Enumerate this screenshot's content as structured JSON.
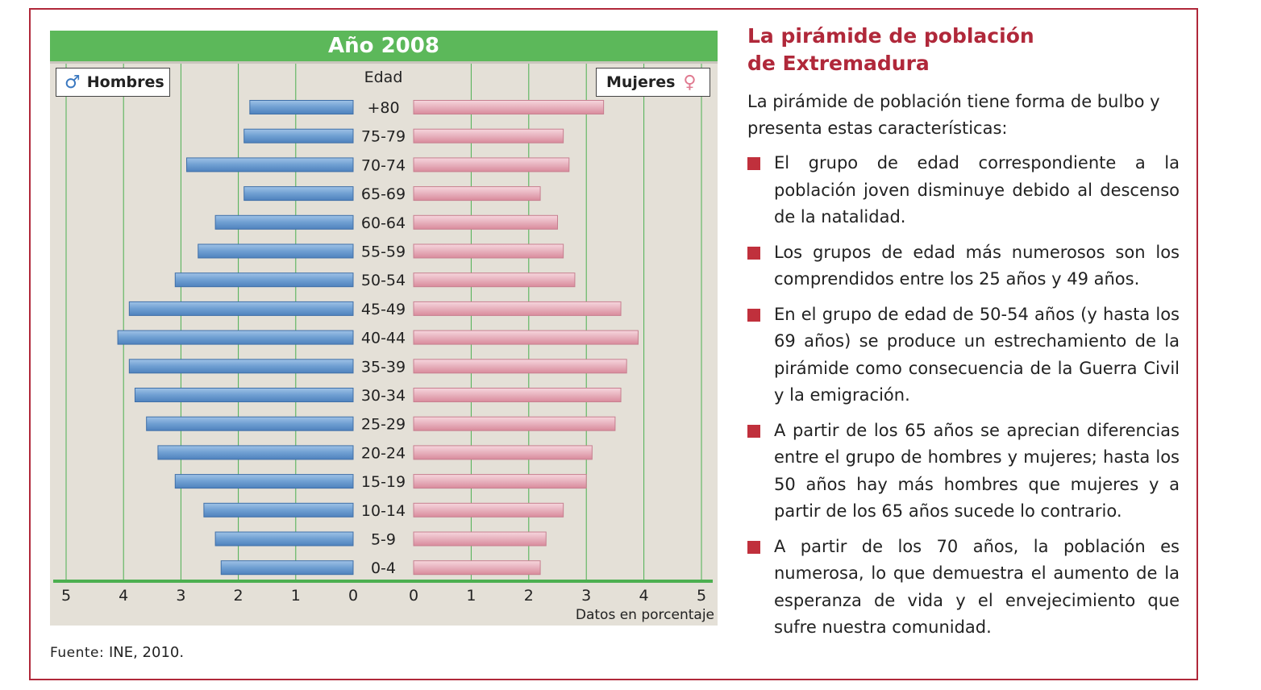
{
  "chart_title": "Año 2008",
  "legend": {
    "male_label": "Hombres",
    "female_label": "Mujeres",
    "male_symbol": "♂",
    "female_symbol": "♀"
  },
  "axis": {
    "age_header": "Edad",
    "unit_note": "Datos en porcentaje"
  },
  "source": {
    "prefix": "Fuente:",
    "text": "INE, 2010."
  },
  "colors": {
    "header_green": "#5cb85a",
    "male_bar": "#6f9fd2",
    "female_bar": "#e7b1bd",
    "accent_red": "#b0283a"
  },
  "chart_data": {
    "type": "bar",
    "orientation": "horizontal",
    "subtype": "population-pyramid",
    "title": "Año 2008",
    "categories": [
      "+80",
      "75-79",
      "70-74",
      "65-69",
      "60-64",
      "55-59",
      "50-54",
      "45-49",
      "40-44",
      "35-39",
      "30-34",
      "25-29",
      "20-24",
      "15-19",
      "10-14",
      "5-9",
      "0-4"
    ],
    "series": [
      {
        "name": "Hombres",
        "values": [
          1.8,
          1.9,
          2.9,
          1.9,
          2.4,
          2.7,
          3.1,
          3.9,
          4.1,
          3.9,
          3.8,
          3.6,
          3.4,
          3.1,
          2.6,
          2.4,
          2.3
        ]
      },
      {
        "name": "Mujeres",
        "values": [
          3.3,
          2.6,
          2.7,
          2.2,
          2.5,
          2.6,
          2.8,
          3.6,
          3.9,
          3.7,
          3.6,
          3.5,
          3.1,
          3.0,
          2.6,
          2.3,
          2.2
        ]
      }
    ],
    "xlim": [
      0,
      5
    ],
    "ticks": [
      0,
      1,
      2,
      3,
      4,
      5
    ],
    "grid": true,
    "xlabel": "Datos en porcentaje",
    "ylabel": "Edad"
  },
  "text_panel": {
    "title_line1": "La pirámide de población",
    "title_line2": "de Extremadura",
    "intro": "La pirámide de población tiene forma de bulbo y presenta estas características:",
    "bullets": [
      "El grupo de edad correspondiente a la población joven disminuye debido al descenso de la natalidad.",
      "Los grupos de edad más numerosos son los comprendidos entre los 25 años y 49 años.",
      "En el grupo de edad de 50-54 años (y hasta los 69 años) se produce un estrechamiento de la pirámide como consecuencia de la Guerra Civil y la emigración.",
      "A partir de los 65 años se aprecian diferencias entre el grupo de hombres y mujeres; hasta los 50 años hay más hombres que mujeres y a partir de los 65 años sucede lo contrario.",
      "A partir de los 70 años, la población es numerosa, lo que demuestra el aumento de la esperanza de vida y el envejecimiento que sufre nuestra comunidad."
    ]
  }
}
